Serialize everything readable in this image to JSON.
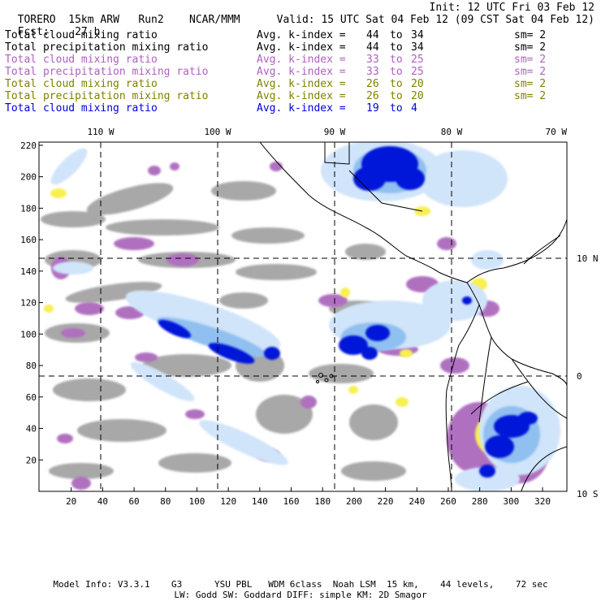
{
  "header": {
    "model": "TORERO",
    "resolution": "15km ARW",
    "run": "Run2",
    "org": "NCAR/MMM",
    "init": "Init: 12 UTC Fri 03 Feb 12",
    "fcst_label": "Fcst:",
    "fcst_value": "27 h",
    "valid": "Valid: 15 UTC Sat 04 Feb 12 (09 CST Sat 04 Feb 12)"
  },
  "legend_rows": [
    {
      "label": "Total cloud mixing ratio",
      "avg_label": "Avg. k-index =",
      "from": "44",
      "to_word": "to",
      "to": "34",
      "sm": "sm= 2",
      "color": "#000000"
    },
    {
      "label": "Total precipitation mixing ratio",
      "avg_label": "Avg. k-index =",
      "from": "44",
      "to_word": "to",
      "to": "34",
      "sm": "sm= 2",
      "color": "#000000"
    },
    {
      "label": "Total cloud mixing ratio",
      "avg_label": "Avg. k-index =",
      "from": "33",
      "to_word": "to",
      "to": "25",
      "sm": "sm= 2",
      "color": "#b060c0"
    },
    {
      "label": "Total precipitation mixing ratio",
      "avg_label": "Avg. k-index =",
      "from": "33",
      "to_word": "to",
      "to": "25",
      "sm": "sm= 2",
      "color": "#b060c0"
    },
    {
      "label": "Total cloud mixing ratio",
      "avg_label": "Avg. k-index =",
      "from": "26",
      "to_word": "to",
      "to": "20",
      "sm": "sm= 2",
      "color": "#808000"
    },
    {
      "label": "Total precipitation mixing ratio",
      "avg_label": "Avg. k-index =",
      "from": "26",
      "to_word": "to",
      "to": "20",
      "sm": "sm= 2",
      "color": "#808000"
    },
    {
      "label": "Total cloud mixing ratio",
      "avg_label": "Avg. k-index =",
      "from": "19",
      "to_word": "to",
      "to": "4",
      "sm": "",
      "color": "#0000e0"
    }
  ],
  "map": {
    "lon_labels": [
      "110 W",
      "100 W",
      "90 W",
      "80 W",
      "70 W"
    ],
    "lat_labels": [
      "10 N",
      "0",
      "10 S"
    ],
    "x_ticks": [
      "20",
      "40",
      "60",
      "80",
      "100",
      "120",
      "140",
      "160",
      "180",
      "200",
      "220",
      "240",
      "260",
      "280",
      "300",
      "320"
    ],
    "y_ticks": [
      "20",
      "40",
      "60",
      "80",
      "100",
      "120",
      "140",
      "160",
      "180",
      "200",
      "220"
    ],
    "colors": {
      "gray": "#a8a8a8",
      "purple": "#b070c0",
      "yellow": "#f8f050",
      "light_blue": "#d0e4fa",
      "mid_blue": "#90c0f0",
      "deep_blue": "#0018d8"
    }
  },
  "footer": {
    "line1": "Model Info: V3.3.1    G3      YSU PBL   WDM 6class  Noah LSM  15 km,    44 levels,    72 sec",
    "line2": "LW: Godd SW: Goddard DIFF: simple KM: 2D Smagor"
  }
}
